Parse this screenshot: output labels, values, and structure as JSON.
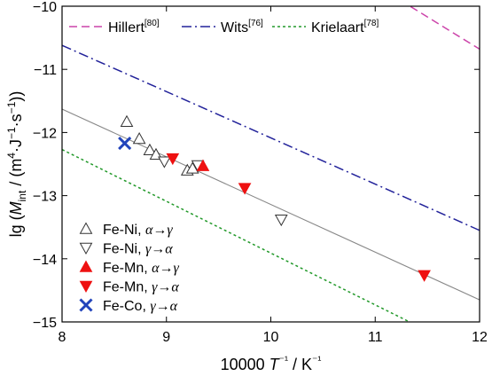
{
  "chart_data": {
    "type": "scatter",
    "xlabel_parts": [
      "10000 ",
      "T",
      "⁻¹",
      " / K",
      "⁻¹"
    ],
    "ylabel_parts": [
      "lg (",
      "M",
      "int",
      " / (m",
      "4",
      "·J",
      "−1",
      "·s",
      "−1",
      "))"
    ],
    "xlim": [
      8,
      12
    ],
    "ylim": [
      -15,
      -10
    ],
    "xticks": [
      8,
      9,
      10,
      11,
      12
    ],
    "yticks": [
      -15,
      -14,
      -13,
      -12,
      -11,
      -10
    ],
    "xtick_labels": [
      "8",
      "9",
      "10",
      "11",
      "12"
    ],
    "ytick_labels": [
      "−15",
      "−14",
      "−13",
      "−12",
      "−11",
      "−10"
    ],
    "grid": false,
    "fit_line": {
      "x": [
        8,
        12
      ],
      "y": [
        -11.63,
        -14.65
      ],
      "color": "#888888"
    },
    "reference_lines": [
      {
        "name": "Hillert",
        "ref": "[80]",
        "color": "#cc44aa",
        "dash": "dash",
        "x": [
          8,
          12
        ],
        "y": [
          -6.6,
          -10.68
        ]
      },
      {
        "name": "Wits",
        "ref": "[76]",
        "color": "#22229a",
        "dash": "dashdot",
        "x": [
          8,
          12
        ],
        "y": [
          -10.62,
          -13.55
        ]
      },
      {
        "name": "Krielaart",
        "ref": "[78]",
        "color": "#22992a",
        "dash": "dot",
        "x": [
          8,
          12
        ],
        "y": [
          -12.27,
          -15.55
        ]
      }
    ],
    "series": [
      {
        "name": "Fe-Ni, α→γ",
        "label": "Fe-Ni, ",
        "alpha": "α→γ",
        "marker": "triangle-up-open",
        "color": "#333333",
        "x": [
          8.62,
          8.74,
          8.84,
          8.9,
          9.2,
          9.25
        ],
        "y": [
          -11.83,
          -12.1,
          -12.28,
          -12.35,
          -12.6,
          -12.57
        ]
      },
      {
        "name": "Fe-Ni, γ→α",
        "label": "Fe-Ni, ",
        "alpha": "γ→α",
        "marker": "triangle-down-open",
        "color": "#333333",
        "x": [
          8.98,
          9.3,
          10.1
        ],
        "y": [
          -12.46,
          -12.52,
          -13.38
        ]
      },
      {
        "name": "Fe-Mn, α→γ",
        "label": "Fe-Mn, ",
        "alpha": "α→γ",
        "marker": "triangle-up-filled",
        "color": "#ee1111",
        "x": [
          9.35
        ],
        "y": [
          -12.53
        ]
      },
      {
        "name": "Fe-Mn, γ→α",
        "label": "Fe-Mn, ",
        "alpha": "γ→α",
        "marker": "triangle-down-filled",
        "color": "#ee1111",
        "x": [
          9.06,
          9.75,
          11.47
        ],
        "y": [
          -12.41,
          -12.88,
          -14.26
        ]
      },
      {
        "name": "Fe-Co, γ→α",
        "label": "Fe-Co, ",
        "alpha": "γ→α",
        "marker": "x",
        "color": "#2244bb",
        "x": [
          8.6
        ],
        "y": [
          -12.17
        ]
      }
    ]
  }
}
